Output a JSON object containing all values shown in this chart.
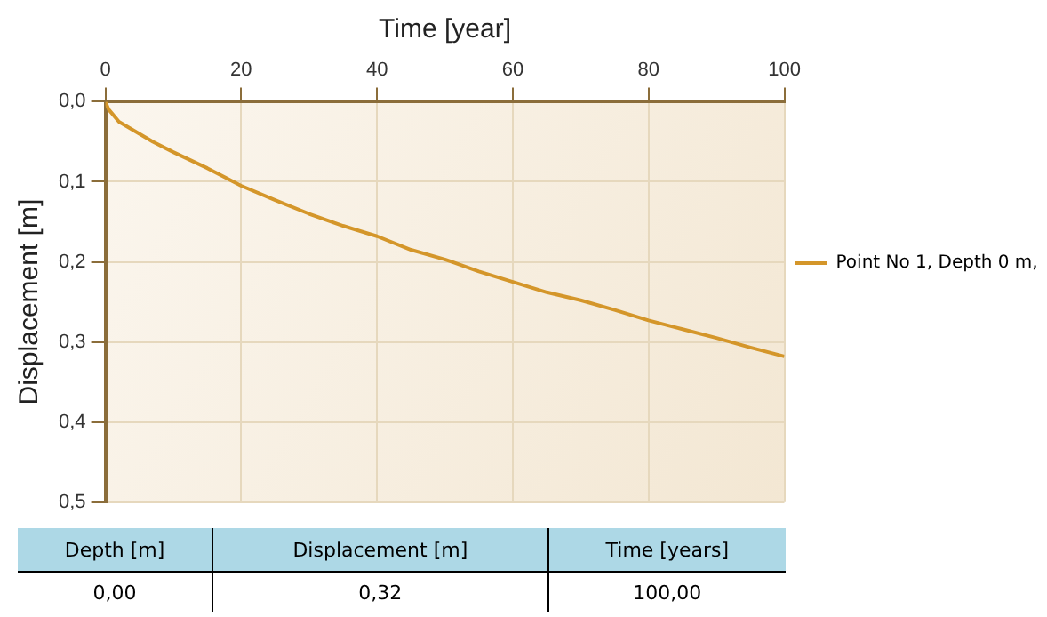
{
  "chart_data": {
    "type": "line",
    "xlabel": "Time [year]",
    "ylabel": "Displacement [m]",
    "x": [
      0,
      0.5,
      1,
      2,
      3,
      5,
      7,
      10,
      15,
      20,
      25,
      30,
      35,
      40,
      45,
      50,
      55,
      60,
      65,
      70,
      75,
      80,
      85,
      90,
      95,
      100
    ],
    "series": [
      {
        "name": "Point No 1, Depth 0 m,",
        "color": "#d4962a",
        "values": [
          0,
          0.01,
          0.015,
          0.025,
          0.03,
          0.04,
          0.05,
          0.063,
          0.083,
          0.105,
          0.123,
          0.14,
          0.155,
          0.168,
          0.185,
          0.197,
          0.212,
          0.225,
          0.238,
          0.248,
          0.26,
          0.273,
          0.284,
          0.295,
          0.307,
          0.318
        ]
      }
    ],
    "xlim": [
      0,
      100
    ],
    "xticks": [
      0,
      20,
      40,
      60,
      80,
      100
    ],
    "ylim": [
      0.5,
      0
    ],
    "yticks": [
      {
        "value": 0,
        "label": "0,0"
      },
      {
        "value": 0.1,
        "label": "0,1"
      },
      {
        "value": 0.2,
        "label": "0,2"
      },
      {
        "value": 0.3,
        "label": "0,3"
      },
      {
        "value": 0.4,
        "label": "0,4"
      },
      {
        "value": 0.5,
        "label": "0,5"
      }
    ],
    "grid": true,
    "legend": "right",
    "marker": "none",
    "line_style": "solid",
    "annotations": [
      "Depth [m]",
      "Displacement [m]",
      "Time [years]",
      "0,00",
      "0,32",
      "100,00"
    ]
  }
}
